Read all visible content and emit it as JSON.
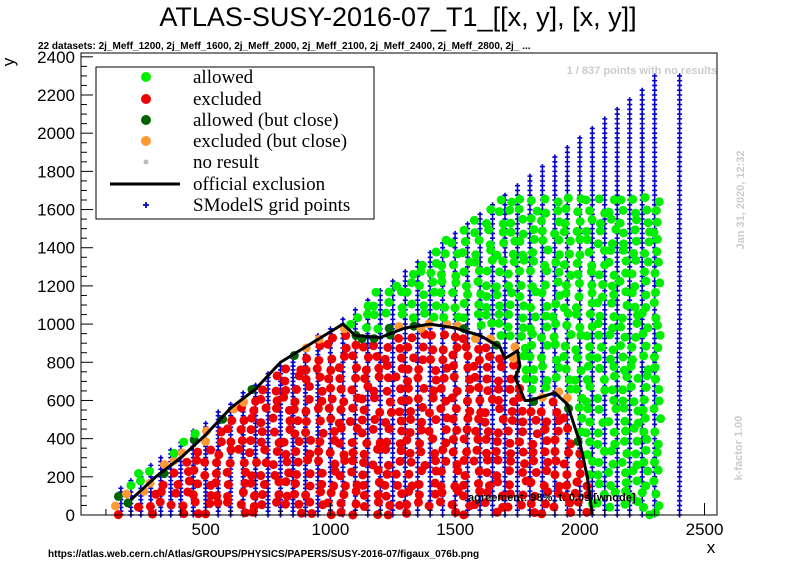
{
  "title": "ATLAS-SUSY-2016-07_T1_[[x, y], [x, y]]",
  "subtitle": "22 datasets: 2j_Meff_1200, 2j_Meff_1600, 2j_Meff_2000, 2j_Meff_2100, 2j_Meff_2400, 2j_Meff_2800, 2j_ ...",
  "source_url": "https://atlas.web.cern.ch/Atlas/GROUPS/PHYSICS/PAPERS/SUSY-2016-07/figaux_076b.png",
  "points_note": "1 / 837 points with no results",
  "date_note": "Jan 31, 2020, 12:32",
  "kfactor_note": "k-factor 1.00",
  "agreement_note": "agreement: 98%, t: 0.0s [wnode]",
  "colors": {
    "allowed": "#00ee00",
    "excluded": "#ee0000",
    "allowed_close": "#006400",
    "excluded_close": "#ff9933",
    "no_result": "#bbbbbb",
    "official": "#000000",
    "grid": "#0000cc"
  },
  "chart_data": {
    "type": "scatter",
    "xlabel": "x",
    "ylabel": "y",
    "xlim": [
      0,
      2550
    ],
    "ylim": [
      0,
      2420
    ],
    "xticks": [
      500,
      1000,
      1500,
      2000,
      2500
    ],
    "yticks": [
      0,
      200,
      400,
      600,
      800,
      1000,
      1200,
      1400,
      1600,
      1800,
      2000,
      2200,
      2400
    ],
    "legend_position": "top-left",
    "legend": [
      {
        "label": "allowed",
        "marker": "circle",
        "color": "#00ee00"
      },
      {
        "label": "excluded",
        "marker": "circle",
        "color": "#ee0000"
      },
      {
        "label": "allowed (but close)",
        "marker": "circle",
        "color": "#006400"
      },
      {
        "label": "excluded (but close)",
        "marker": "circle",
        "color": "#ff9933"
      },
      {
        "label": "no result",
        "marker": "smallcircle",
        "color": "#bbbbbb"
      },
      {
        "label": "official exclusion",
        "marker": "line",
        "color": "#000000"
      },
      {
        "label": "SModelS grid points",
        "marker": "cross",
        "color": "#0000cc"
      }
    ],
    "official_exclusion": {
      "x": [
        200,
        300,
        400,
        500,
        600,
        700,
        800,
        900,
        1000,
        1050,
        1100,
        1200,
        1300,
        1400,
        1500,
        1600,
        1680,
        1700,
        1750,
        1760,
        1740,
        1780,
        1800,
        1900,
        1950,
        1970,
        2000,
        2030,
        2050
      ],
      "y": [
        80,
        200,
        300,
        420,
        560,
        660,
        800,
        880,
        960,
        1000,
        940,
        930,
        980,
        1000,
        980,
        940,
        880,
        820,
        860,
        780,
        720,
        600,
        600,
        640,
        580,
        500,
        380,
        200,
        0
      ]
    },
    "excluded_region": "below official exclusion curve",
    "allowed_region": "above official exclusion curve, up to y ≈ x − 10",
    "grid_columns_x": [
      160,
      200,
      240,
      280,
      320,
      360,
      400,
      450,
      500,
      550,
      600,
      650,
      700,
      750,
      800,
      850,
      900,
      950,
      1000,
      1050,
      1100,
      1150,
      1200,
      1250,
      1300,
      1350,
      1400,
      1450,
      1500,
      1550,
      1600,
      1650,
      1700,
      1750,
      1800,
      1850,
      1900,
      1950,
      2000,
      2050,
      2100,
      2150,
      2200,
      2250,
      2300,
      2400
    ],
    "grid_max_y_note": "grid extends to y ≈ 2300 at x = 2400"
  }
}
